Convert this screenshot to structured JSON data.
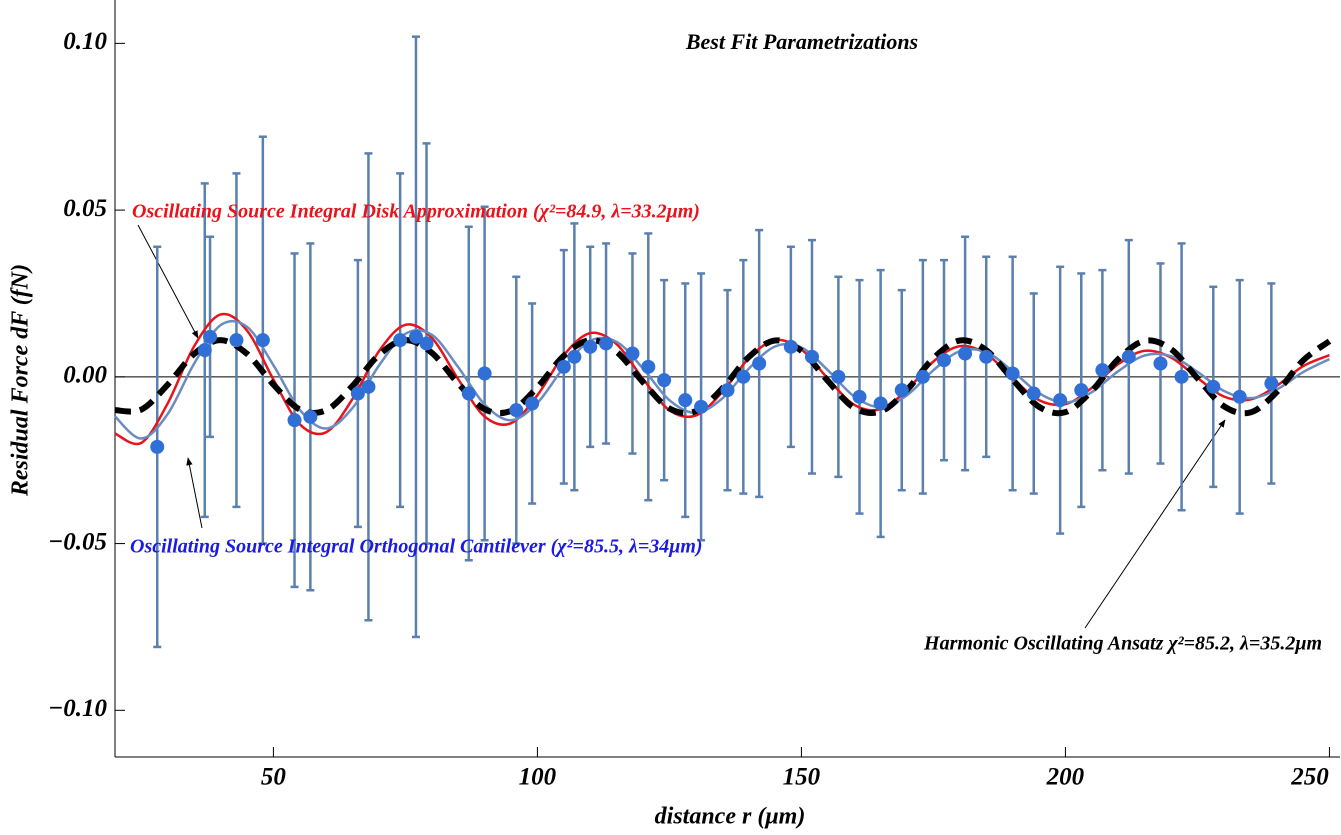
{
  "chart_data": {
    "type": "scatter",
    "title": "Best Fit Parametrizations",
    "xlabel": "distance  r (μm)",
    "ylabel": "Residual Force  dF (fN)",
    "xlim": [
      20,
      252
    ],
    "ylim": [
      -0.114,
      0.113
    ],
    "xticks": [
      50,
      100,
      150,
      200,
      250
    ],
    "yticks": [
      {
        "value": 0.1,
        "label": "0.10"
      },
      {
        "value": 0.05,
        "label": "0.05"
      },
      {
        "value": 0,
        "label": "0.00"
      },
      {
        "value": -0.05,
        "label": "−0.05"
      },
      {
        "value": -0.1,
        "label": "−0.10"
      }
    ],
    "points": {
      "color": "#2f6fd6",
      "error_color": "#5b7fae",
      "x": [
        28,
        37,
        38,
        43,
        48,
        54,
        57,
        66,
        68,
        74,
        77,
        79,
        87,
        90,
        96,
        99,
        105,
        107,
        110,
        113,
        118,
        121,
        124,
        128,
        131,
        136,
        139,
        142,
        148,
        152,
        157,
        161,
        165,
        169,
        173,
        177,
        181,
        185,
        190,
        194,
        199,
        203,
        207,
        212,
        218,
        222,
        228,
        233,
        239
      ],
      "values": [
        -0.021,
        0.008,
        0.012,
        0.011,
        0.011,
        -0.013,
        -0.012,
        -0.005,
        -0.003,
        0.011,
        0.012,
        0.01,
        -0.005,
        0.001,
        -0.01,
        -0.008,
        0.003,
        0.006,
        0.009,
        0.01,
        0.007,
        0.003,
        -0.001,
        -0.007,
        -0.009,
        -0.004,
        0.0,
        0.004,
        0.009,
        0.006,
        0.0,
        -0.006,
        -0.008,
        -0.004,
        0.0,
        0.005,
        0.007,
        0.006,
        0.001,
        -0.005,
        -0.007,
        -0.004,
        0.002,
        0.006,
        0.004,
        0.0,
        -0.003,
        -0.006,
        -0.002
      ],
      "errors": [
        0.06,
        0.05,
        0.03,
        0.05,
        0.061,
        0.05,
        0.052,
        0.04,
        0.07,
        0.05,
        0.09,
        0.06,
        0.05,
        0.05,
        0.04,
        0.03,
        0.035,
        0.04,
        0.03,
        0.03,
        0.03,
        0.04,
        0.03,
        0.035,
        0.04,
        0.03,
        0.035,
        0.04,
        0.03,
        0.035,
        0.03,
        0.035,
        0.04,
        0.03,
        0.035,
        0.03,
        0.035,
        0.03,
        0.035,
        0.03,
        0.04,
        0.035,
        0.03,
        0.035,
        0.03,
        0.04,
        0.03,
        0.035,
        0.03
      ]
    },
    "curve_x": [
      20,
      25,
      30,
      35,
      40,
      45,
      50,
      55,
      60,
      65,
      70,
      75,
      80,
      85,
      90,
      95,
      100,
      105,
      110,
      115,
      120,
      125,
      130,
      135,
      140,
      145,
      150,
      155,
      160,
      165,
      170,
      175,
      180,
      185,
      190,
      195,
      200,
      205,
      210,
      215,
      220,
      225,
      230,
      235,
      240,
      245,
      250
    ],
    "series": [
      {
        "name": "Oscillating Source Integral Disk Approximation (χ²=84.9, λ=33.2μm)",
        "color": "#e8141b",
        "dashed": false,
        "values": [
          -0.017,
          -0.0198,
          -0.0079,
          0.0092,
          0.0187,
          0.0139,
          -0.0008,
          -0.0142,
          -0.0166,
          -0.0066,
          0.0077,
          0.0156,
          0.0117,
          -0.0007,
          -0.0119,
          -0.0139,
          -0.0055,
          0.0065,
          0.0131,
          0.0098,
          -0.0006,
          -0.01,
          -0.0116,
          -0.0046,
          0.0055,
          0.011,
          0.0082,
          -0.0005,
          -0.0084,
          -0.0097,
          -0.0039,
          0.0046,
          0.0092,
          0.0069,
          -0.0004,
          -0.007,
          -0.0082,
          -0.0033,
          0.0038,
          0.0078,
          0.0058,
          -0.0003,
          -0.0059,
          -0.0068,
          -0.0027,
          0.0032,
          0.0065
        ]
      },
      {
        "name": "Oscillating Source Integral Orthogonal Cantilever (χ²=85.5, λ=34μm)",
        "color": "#1a1ae6",
        "line_color": "#6a8cc0",
        "dashed": false,
        "values": [
          -0.0119,
          -0.0185,
          -0.0111,
          0.004,
          0.0155,
          0.015,
          0.0035,
          -0.0099,
          -0.0155,
          -0.0093,
          0.0034,
          0.0129,
          0.0126,
          0.0029,
          -0.0083,
          -0.013,
          -0.0078,
          0.0028,
          0.0108,
          0.0105,
          0.0025,
          -0.007,
          -0.0108,
          -0.0065,
          0.0024,
          0.0091,
          0.0088,
          0.002,
          -0.0059,
          -0.0091,
          -0.0055,
          0.002,
          0.0077,
          0.0074,
          0.0017,
          -0.0049,
          -0.0077,
          -0.0046,
          0.0017,
          0.0064,
          0.0062,
          0.0015,
          -0.0042,
          -0.0064,
          -0.0038,
          0.0014,
          0.0053
        ]
      },
      {
        "name": "Harmonic Oscillating Ansatz  χ²=85.2, λ=35.2μm",
        "color": "#000000",
        "dashed": true,
        "values": [
          -0.01,
          -0.0098,
          -0.0023,
          0.0069,
          0.011,
          0.0069,
          -0.0023,
          -0.0098,
          -0.01,
          -0.0027,
          0.0066,
          0.011,
          0.0072,
          -0.002,
          -0.0097,
          -0.0102,
          -0.0031,
          0.0063,
          0.011,
          0.0075,
          -0.0016,
          -0.0095,
          -0.0103,
          -0.0035,
          0.0059,
          0.0109,
          0.0078,
          -0.0012,
          -0.0093,
          -0.0104,
          -0.0039,
          0.0056,
          0.0109,
          0.008,
          -0.0008,
          -0.009,
          -0.0106,
          -0.0042,
          0.0053,
          0.0108,
          0.0083,
          -0.0004,
          -0.0088,
          -0.0107,
          -0.0046,
          0.0049,
          0.0107
        ]
      }
    ]
  }
}
